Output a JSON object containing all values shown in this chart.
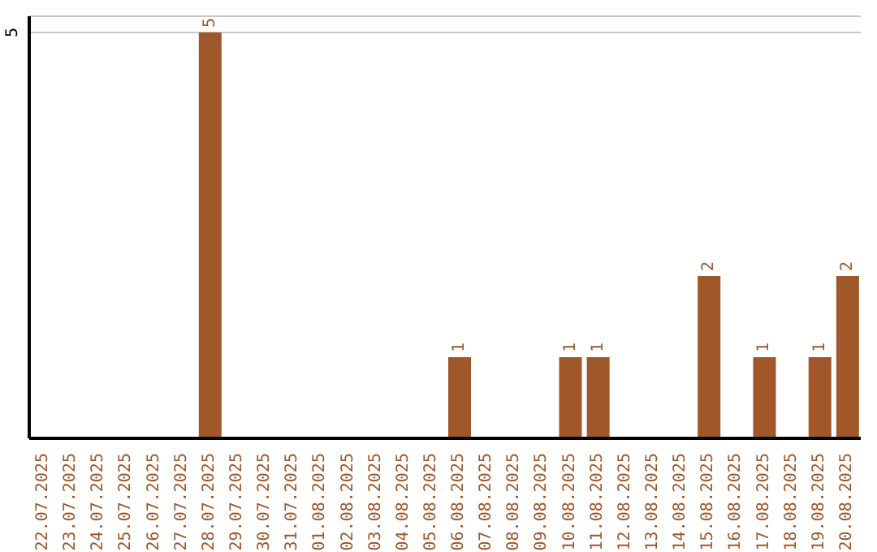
{
  "chart_data": {
    "type": "bar",
    "categories": [
      "22.07.2025",
      "23.07.2025",
      "24.07.2025",
      "25.07.2025",
      "26.07.2025",
      "27.07.2025",
      "28.07.2025",
      "29.07.2025",
      "30.07.2025",
      "31.07.2025",
      "01.08.2025",
      "02.08.2025",
      "03.08.2025",
      "04.08.2025",
      "05.08.2025",
      "06.08.2025",
      "07.08.2025",
      "08.08.2025",
      "09.08.2025",
      "10.08.2025",
      "11.08.2025",
      "12.08.2025",
      "13.08.2025",
      "14.08.2025",
      "15.08.2025",
      "16.08.2025",
      "17.08.2025",
      "18.08.2025",
      "19.08.2025",
      "20.08.2025"
    ],
    "values": [
      0,
      0,
      0,
      0,
      0,
      0,
      5,
      0,
      0,
      0,
      0,
      0,
      0,
      0,
      0,
      1,
      0,
      0,
      0,
      1,
      1,
      0,
      0,
      0,
      2,
      0,
      1,
      0,
      1,
      2
    ],
    "value_labels": [
      null,
      null,
      null,
      null,
      null,
      null,
      "5",
      null,
      null,
      null,
      null,
      null,
      null,
      null,
      null,
      "1",
      null,
      null,
      null,
      "1",
      "1",
      null,
      null,
      null,
      "2",
      null,
      "1",
      null,
      "1",
      "2"
    ],
    "color": "#a0572a",
    "ylim": [
      0,
      5.2
    ],
    "yticks": [
      5
    ],
    "grid": "y",
    "legend": false
  }
}
